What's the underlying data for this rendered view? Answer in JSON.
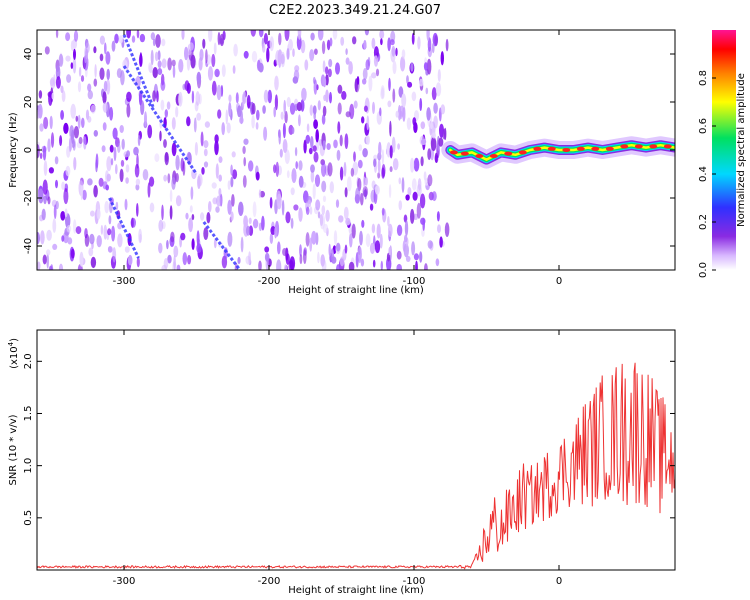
{
  "title": "C2E2.2023.349.21.24.G07",
  "chart_data": [
    {
      "type": "heatmap",
      "name": "spectrogram",
      "xlabel": "Height of straight line (km)",
      "ylabel": "Frequency (Hz)",
      "xlim": [
        -360,
        80
      ],
      "ylim": [
        -50,
        50
      ],
      "xticks": [
        -300,
        -200,
        -100,
        0
      ],
      "xtick_labels": [
        "-300",
        "-200",
        "-100",
        "0"
      ],
      "yticks": [
        40,
        20,
        0,
        -20,
        -40
      ],
      "ytick_labels": [
        "40",
        "20",
        "0",
        "-20",
        "-40"
      ],
      "colorbar": {
        "label": "Normalized spectral amplitude",
        "range": [
          0,
          1
        ],
        "ticks": [
          0.0,
          0.2,
          0.4,
          0.6,
          0.8
        ],
        "tick_labels": [
          "0.0",
          "0.2",
          "0.4",
          "0.6",
          "0.8"
        ],
        "colors": [
          "#ffffff",
          "#d8b8ff",
          "#8a2be2",
          "#3030ff",
          "#00d8ff",
          "#00e060",
          "#ffff00",
          "#ff8000",
          "#ff0000",
          "#ff1493"
        ]
      },
      "noise_region_x": [
        -360,
        -77
      ],
      "signal_track": {
        "x": [
          -75,
          -70,
          -60,
          -50,
          -40,
          -30,
          -20,
          -10,
          0,
          10,
          20,
          30,
          40,
          50,
          60,
          70,
          80
        ],
        "frequency": [
          0,
          -2,
          -1,
          -4,
          -1,
          -2,
          0,
          1,
          0,
          0,
          1,
          0,
          1,
          2,
          1,
          2,
          1
        ]
      },
      "diagonal_streaks": [
        {
          "x": [
            -300,
            -280
          ],
          "frequency": [
            48,
            18
          ]
        },
        {
          "x": [
            -300,
            -250
          ],
          "frequency": [
            35,
            -10
          ]
        },
        {
          "x": [
            -310,
            -290
          ],
          "frequency": [
            -20,
            -45
          ]
        },
        {
          "x": [
            -245,
            -220
          ],
          "frequency": [
            -30,
            -50
          ]
        }
      ]
    },
    {
      "type": "line",
      "name": "snr",
      "xlabel": "Height of straight line (km)",
      "ylabel": "SNR (10 * v/v)",
      "y_multiplier": "(x10",
      "y_multiplier_exp": "4",
      "y_multiplier_close": ")",
      "xlim": [
        -360,
        80
      ],
      "ylim": [
        0,
        2.3
      ],
      "xticks": [
        -300,
        -200,
        -100,
        0
      ],
      "xtick_labels": [
        "-300",
        "-200",
        "-100",
        "0"
      ],
      "yticks": [
        0.5,
        1.0,
        1.5,
        2.0
      ],
      "ytick_labels": [
        "0.5",
        "1.0",
        "1.5",
        "2.0"
      ],
      "series": [
        {
          "color": "#ee3333",
          "x": [
            -360,
            -340,
            -320,
            -300,
            -280,
            -260,
            -240,
            -220,
            -200,
            -180,
            -160,
            -140,
            -120,
            -100,
            -80,
            -60,
            -55,
            -50,
            -45,
            -40,
            -35,
            -30,
            -25,
            -20,
            -15,
            -10,
            -5,
            0,
            5,
            10,
            15,
            20,
            25,
            30,
            35,
            40,
            45,
            50,
            55,
            60,
            65,
            70,
            75,
            80
          ],
          "y": [
            0.03,
            0.03,
            0.03,
            0.03,
            0.03,
            0.03,
            0.03,
            0.03,
            0.03,
            0.03,
            0.03,
            0.03,
            0.03,
            0.03,
            0.03,
            0.03,
            0.15,
            0.3,
            0.45,
            0.4,
            0.5,
            0.6,
            0.7,
            0.7,
            0.75,
            0.8,
            0.85,
            0.9,
            1.0,
            1.0,
            1.1,
            1.15,
            1.2,
            1.3,
            1.25,
            1.35,
            1.3,
            1.4,
            1.35,
            1.3,
            1.2,
            1.1,
            1.1,
            1.0
          ],
          "amplitude": [
            0.01,
            0.01,
            0.01,
            0.01,
            0.01,
            0.01,
            0.01,
            0.01,
            0.01,
            0.01,
            0.01,
            0.01,
            0.01,
            0.01,
            0.01,
            0.02,
            0.1,
            0.25,
            0.3,
            0.3,
            0.3,
            0.3,
            0.35,
            0.3,
            0.3,
            0.35,
            0.35,
            0.35,
            0.4,
            0.45,
            0.5,
            0.55,
            0.6,
            0.6,
            0.65,
            0.7,
            0.75,
            0.8,
            0.75,
            0.7,
            0.65,
            0.6,
            0.5,
            0.4
          ]
        }
      ]
    }
  ]
}
